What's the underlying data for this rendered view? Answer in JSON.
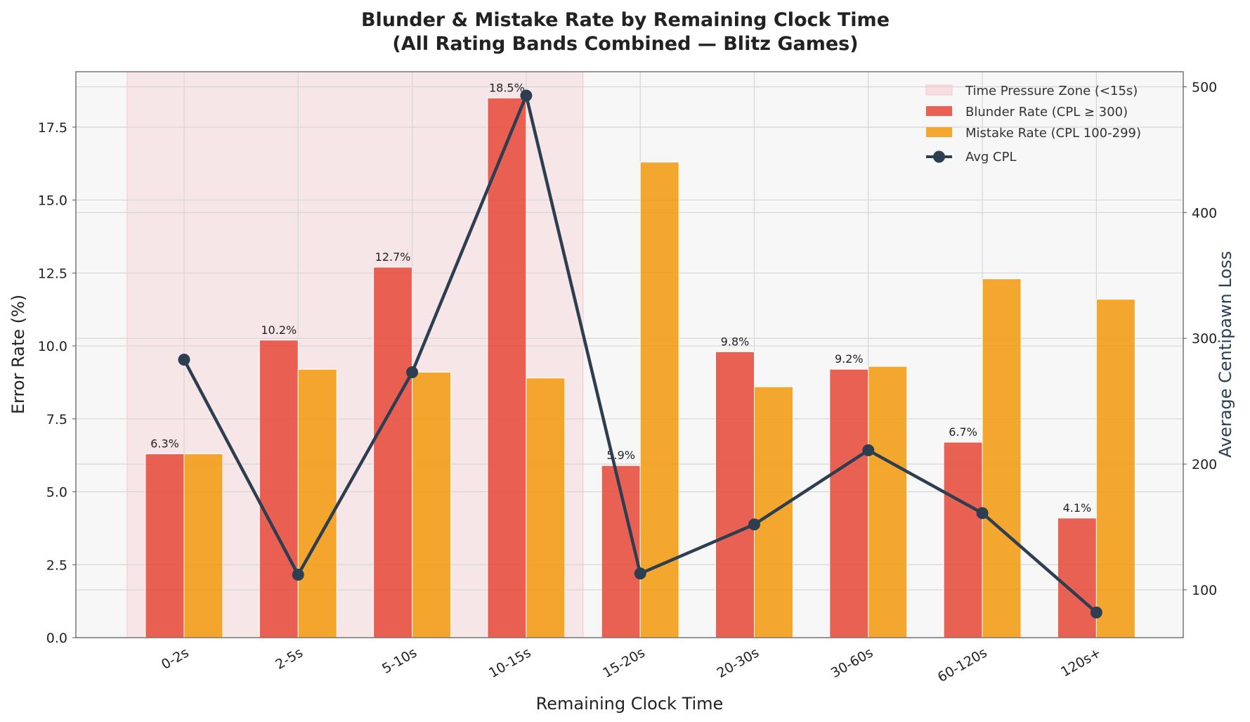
{
  "chart_data": {
    "type": "bar",
    "title": "Blunder & Mistake Rate by Remaining Clock Time",
    "subtitle": "(All Rating Bands Combined — Blitz Games)",
    "xlabel": "Remaining Clock Time",
    "ylabel": "Error Rate (%)",
    "y2label": "Average Centipawn Loss",
    "categories": [
      "0-2s",
      "2-5s",
      "5-10s",
      "10-15s",
      "15-20s",
      "20-30s",
      "30-60s",
      "60-120s",
      "120s+"
    ],
    "series": [
      {
        "name": "Blunder Rate (CPL ≥ 300)",
        "type": "bar",
        "axis": "left",
        "color": "#e74c3c",
        "values": [
          6.3,
          10.2,
          12.7,
          18.5,
          5.9,
          9.8,
          9.2,
          6.7,
          4.1
        ]
      },
      {
        "name": "Mistake Rate (CPL 100-299)",
        "type": "bar",
        "axis": "left",
        "color": "#f39c12",
        "values": [
          6.3,
          9.2,
          9.1,
          8.9,
          16.3,
          8.6,
          9.3,
          12.3,
          11.6
        ]
      },
      {
        "name": "Avg CPL",
        "type": "line",
        "axis": "right",
        "color": "#2c3e50",
        "values": [
          283,
          112,
          273,
          493,
          113,
          152,
          211,
          161,
          82
        ]
      }
    ],
    "data_labels": [
      "6.3%",
      "10.2%",
      "12.7%",
      "18.5%",
      "5.9%",
      "9.8%",
      "9.2%",
      "6.7%",
      "4.1%"
    ],
    "shaded_region": {
      "label": "Time Pressure Zone (<15s)",
      "from_category": "0-2s",
      "to_category": "10-15s",
      "color": "#f5c6cb"
    },
    "ylim": [
      0,
      19.4
    ],
    "yticks": [
      "0.0",
      "2.5",
      "5.0",
      "7.5",
      "10.0",
      "12.5",
      "15.0",
      "17.5"
    ],
    "y2lim": [
      62,
      512
    ],
    "y2ticks": [
      "100",
      "200",
      "300",
      "400",
      "500"
    ],
    "grid": true,
    "legend_position": "top-right"
  }
}
